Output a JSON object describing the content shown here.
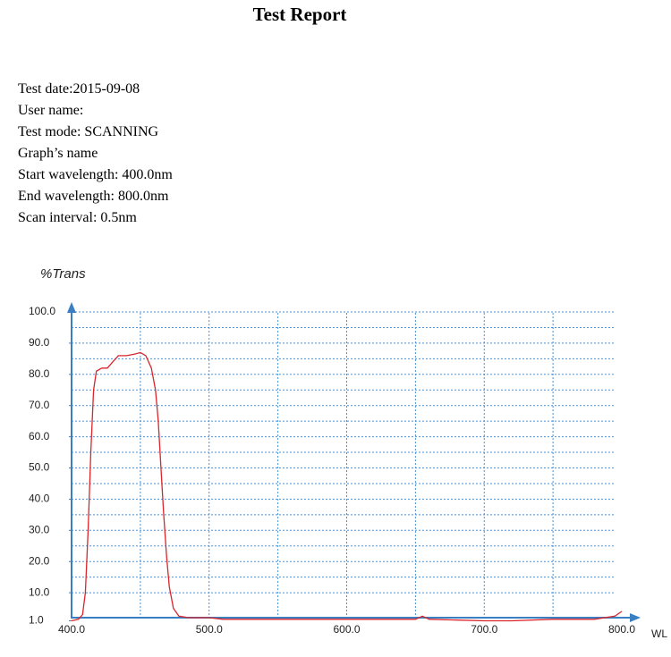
{
  "header": {
    "title": "Test Report"
  },
  "info": [
    "Test date:2015-09-08",
    "User name:",
    "Test mode: SCANNING",
    "Graph’s name",
    "Start wavelength: 400.0nm",
    "End wavelength: 800.0nm",
    "Scan interval: 0.5nm"
  ],
  "chart_data": {
    "type": "line",
    "y_label": "%Trans",
    "x_label": "WL",
    "xlim": [
      400,
      800
    ],
    "ylim": [
      0,
      100
    ],
    "xticks": [
      {
        "value": 400,
        "label": "400.0"
      },
      {
        "value": 500,
        "label": "500.0"
      },
      {
        "value": 600,
        "label": "600.0"
      },
      {
        "value": 700,
        "label": "700.0"
      },
      {
        "value": 800,
        "label": "800.0"
      }
    ],
    "yticks": [
      {
        "value": 1,
        "label": "1.0"
      },
      {
        "value": 10,
        "label": "10.0"
      },
      {
        "value": 20,
        "label": "20.0"
      },
      {
        "value": 30,
        "label": "30.0"
      },
      {
        "value": 40,
        "label": "40.0"
      },
      {
        "value": 50,
        "label": "50.0"
      },
      {
        "value": 60,
        "label": "60.0"
      },
      {
        "value": 70,
        "label": "70.0"
      },
      {
        "value": 80,
        "label": "80.0"
      },
      {
        "value": 90,
        "label": "90.0"
      },
      {
        "value": 100,
        "label": "100.0"
      }
    ],
    "grid": true,
    "series": [
      {
        "color": "#d9262b",
        "x": [
          400,
          405,
          408,
          410,
          412,
          414,
          416,
          418,
          422,
          426,
          430,
          434,
          440,
          446,
          450,
          454,
          458,
          461,
          463,
          465,
          467,
          469,
          471,
          474,
          478,
          485,
          500,
          510,
          550,
          600,
          650,
          655,
          660,
          700,
          720,
          750,
          780,
          795,
          800
        ],
        "values": [
          1,
          1.5,
          3,
          10,
          30,
          55,
          75,
          81,
          82,
          82,
          84,
          86,
          86,
          86.5,
          87,
          86,
          82,
          75,
          65,
          50,
          35,
          22,
          12,
          5,
          2.5,
          2,
          2,
          1.5,
          1.5,
          1.5,
          1.5,
          2.5,
          1.5,
          1,
          1,
          1.5,
          1.5,
          2.5,
          4
        ]
      }
    ]
  }
}
